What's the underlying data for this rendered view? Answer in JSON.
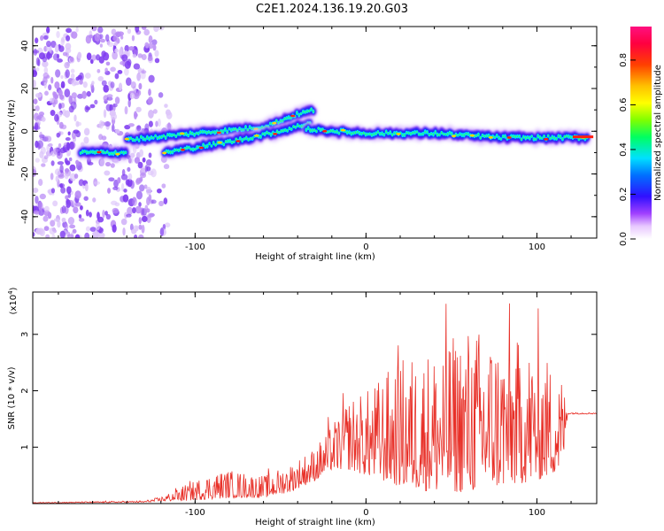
{
  "title": "C2E1.2024.136.19.20.G03",
  "chart_data": [
    {
      "type": "heatmap",
      "title": "C2E1.2024.136.19.20.G03",
      "xlabel": "Height of straight line (km)",
      "ylabel": "Frequency (Hz)",
      "xlim": [
        -195,
        135
      ],
      "ylim": [
        -50,
        49
      ],
      "xticks": [
        -100,
        0,
        100
      ],
      "yticks": [
        -40,
        -20,
        0,
        20,
        40
      ],
      "xtick_labels": [
        "-100",
        "0",
        "100"
      ],
      "ytick_labels": [
        "-40",
        "-20",
        "0",
        "20",
        "40"
      ],
      "colorbar": {
        "label": "Normalized spectral amplitude",
        "range": [
          0,
          0.95
        ],
        "ticks": [
          0.0,
          0.2,
          0.4,
          0.6,
          0.8
        ],
        "tick_labels": [
          "0.0",
          "0.2",
          "0.4",
          "0.6",
          "0.8"
        ]
      },
      "ridges": [
        {
          "name": "low-altitude segment",
          "x": [
            -167,
            -140
          ],
          "freq": [
            -10,
            -10
          ]
        },
        {
          "name": "upper branch",
          "x": [
            -140,
            -60,
            -40,
            -30
          ],
          "freq": [
            -4,
            2,
            8,
            10
          ]
        },
        {
          "name": "lower branch",
          "x": [
            -118,
            -80,
            -50,
            -32
          ],
          "freq": [
            -10,
            -5,
            0,
            4
          ]
        },
        {
          "name": "high-altitude segment",
          "x": [
            -35,
            0,
            40,
            80,
            130
          ],
          "freq": [
            1,
            -1,
            -1,
            -3,
            -3
          ]
        }
      ]
    },
    {
      "type": "line",
      "xlabel": "Height of straight line (km)",
      "ylabel": "SNR (10 * v/v)",
      "y_scale_label": "(x10",
      "y_scale_exp": "4",
      "y_scale_close": ")",
      "xlim": [
        -195,
        135
      ],
      "ylim": [
        0,
        3.75
      ],
      "xticks": [
        -100,
        0,
        100
      ],
      "yticks": [
        1,
        2,
        3
      ],
      "xtick_labels": [
        "-100",
        "0",
        "100"
      ],
      "ytick_labels": [
        "1",
        "2",
        "3"
      ],
      "series": [
        {
          "name": "SNR",
          "color": "#e83028",
          "envelope_x": [
            -195,
            -130,
            -120,
            -105,
            -90,
            -80,
            -60,
            -45,
            -30,
            -20,
            -10,
            0,
            20,
            40,
            60,
            80,
            100,
            115,
            118,
            135
          ],
          "envelope_peak": [
            0.02,
            0.05,
            0.12,
            0.35,
            0.55,
            0.6,
            0.5,
            0.7,
            1.0,
            1.4,
            1.9,
            2.0,
            2.6,
            2.8,
            3.2,
            3.0,
            2.8,
            2.3,
            1.6,
            1.6
          ],
          "envelope_floor": [
            0.01,
            0.02,
            0.04,
            0.05,
            0.08,
            0.1,
            0.1,
            0.2,
            0.4,
            0.6,
            0.6,
            0.5,
            0.3,
            0.2,
            0.2,
            0.3,
            0.4,
            0.6,
            1.6,
            1.58
          ]
        }
      ]
    }
  ]
}
